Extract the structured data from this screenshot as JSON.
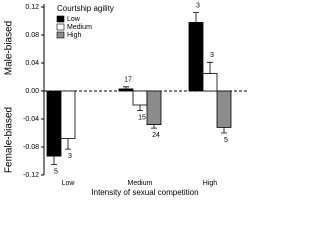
{
  "chart_data": {
    "type": "bar",
    "y_label_upper": "Male-biased",
    "y_label_lower": "Female-biased",
    "x_label": "Intensity of sexual competition",
    "legend_title": "Courtship agility",
    "categories": [
      "Low",
      "Medium",
      "High"
    ],
    "series": [
      {
        "name": "Low",
        "color": "#000000",
        "values": [
          -0.093,
          0.003,
          0.098
        ],
        "errors": [
          0.012,
          0.003,
          0.014
        ],
        "n": [
          5,
          17,
          3
        ]
      },
      {
        "name": "Medium",
        "color": "#ffffff",
        "values": [
          -0.068,
          -0.02,
          0.025
        ],
        "errors": [
          0.015,
          0.008,
          0.016
        ],
        "n": [
          3,
          15,
          3
        ]
      },
      {
        "name": "High",
        "color": "#8c8c8c",
        "values": [
          null,
          -0.048,
          -0.052
        ],
        "errors": [
          null,
          0.005,
          0.008
        ],
        "n": [
          null,
          24,
          5
        ]
      }
    ],
    "ylim": [
      -0.12,
      0.12
    ],
    "yticks": [
      -0.12,
      -0.08,
      -0.04,
      {
        "value": 0,
        "label": "0.00"
      },
      0.04,
      0.08,
      0.12
    ],
    "legend": "upper left"
  }
}
